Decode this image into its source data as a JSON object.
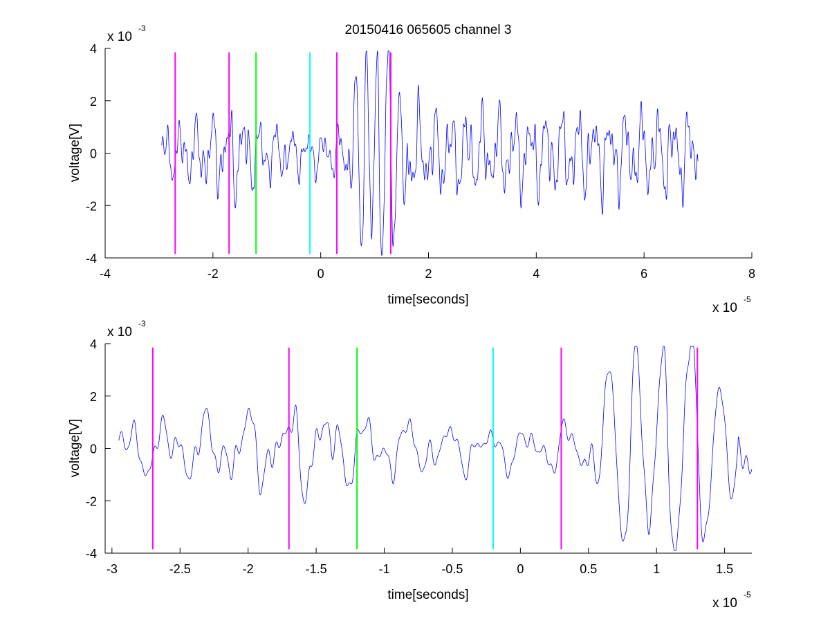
{
  "figure": {
    "title": "20150416 065605 channel 3"
  },
  "chart_data": [
    {
      "type": "line",
      "title": "20150416 065605 channel 3",
      "xlabel": "time[seconds]",
      "ylabel": "voltage[V]",
      "x_multiplier": {
        "base": "x 10",
        "exponent": "-5"
      },
      "y_multiplier": {
        "base": "x 10",
        "exponent": "-3"
      },
      "xlim": [
        -4,
        8
      ],
      "ylim": [
        -4,
        4
      ],
      "xticks": [
        -4,
        -2,
        0,
        2,
        4,
        6,
        8
      ],
      "xtick_labels": [
        "-4",
        "-2",
        "0",
        "2",
        "4",
        "6",
        "8"
      ],
      "yticks": [
        -4,
        -2,
        0,
        2,
        4
      ],
      "ytick_labels": [
        "-4",
        "-2",
        "0",
        "2",
        "4"
      ],
      "grid": false,
      "box": "left-bottom axes only",
      "series": [
        {
          "color": "#0000ff",
          "x_range": [
            -2.95,
            7.0
          ],
          "amplitude_envelope": [
            [
              -2.95,
              0.6
            ],
            [
              -2.0,
              0.9
            ],
            [
              -1.5,
              1.1
            ],
            [
              -1.2,
              0.8
            ],
            [
              -0.5,
              0.55
            ],
            [
              0.0,
              0.5
            ],
            [
              0.4,
              0.6
            ],
            [
              0.7,
              1.5
            ],
            [
              1.0,
              3.0
            ],
            [
              1.2,
              2.6
            ],
            [
              1.5,
              1.2
            ],
            [
              2.0,
              1.0
            ],
            [
              7.0,
              1.0
            ]
          ]
        }
      ],
      "markers": [
        {
          "x": -2.7,
          "color": "#ff00ff"
        },
        {
          "x": -1.7,
          "color": "#ff00ff"
        },
        {
          "x": -1.2,
          "color": "#00ff00"
        },
        {
          "x": -0.2,
          "color": "#00ffff"
        },
        {
          "x": 0.3,
          "color": "#ff00ff"
        },
        {
          "x": 1.3,
          "color": "#ff00ff"
        }
      ],
      "marker_yrange": [
        -3.85,
        3.85
      ]
    },
    {
      "type": "line",
      "xlabel": "time[seconds]",
      "ylabel": "voltage[V]",
      "x_multiplier": {
        "base": "x 10",
        "exponent": "-5"
      },
      "y_multiplier": {
        "base": "x 10",
        "exponent": "-3"
      },
      "xlim": [
        -3.05,
        1.7
      ],
      "ylim": [
        -4,
        4
      ],
      "xticks": [
        -3,
        -2.5,
        -2,
        -1.5,
        -1,
        -0.5,
        0,
        0.5,
        1,
        1.5
      ],
      "xtick_labels": [
        "-3",
        "-2.5",
        "-2",
        "-1.5",
        "-1",
        "-0.5",
        "0",
        "0.5",
        "1",
        "1.5"
      ],
      "yticks": [
        -4,
        -2,
        0,
        2,
        4
      ],
      "ytick_labels": [
        "-4",
        "-2",
        "0",
        "2",
        "4"
      ],
      "grid": false,
      "box": "left-bottom axes only",
      "series": [
        {
          "color": "#0000ff",
          "x_range": [
            -2.95,
            1.7
          ],
          "amplitude_envelope": [
            [
              -2.95,
              0.6
            ],
            [
              -2.0,
              0.9
            ],
            [
              -1.5,
              1.1
            ],
            [
              -1.2,
              0.8
            ],
            [
              -0.5,
              0.55
            ],
            [
              0.0,
              0.5
            ],
            [
              0.4,
              0.6
            ],
            [
              0.7,
              1.5
            ],
            [
              1.0,
              3.0
            ],
            [
              1.2,
              2.6
            ],
            [
              1.5,
              1.2
            ],
            [
              1.7,
              1.0
            ]
          ]
        }
      ],
      "markers": [
        {
          "x": -2.7,
          "color": "#ff00ff"
        },
        {
          "x": -1.7,
          "color": "#ff00ff"
        },
        {
          "x": -1.2,
          "color": "#00ff00"
        },
        {
          "x": -0.2,
          "color": "#00ffff"
        },
        {
          "x": 0.3,
          "color": "#ff00ff"
        },
        {
          "x": 1.3,
          "color": "#ff00ff"
        }
      ],
      "marker_yrange": [
        -3.85,
        3.85
      ]
    }
  ]
}
